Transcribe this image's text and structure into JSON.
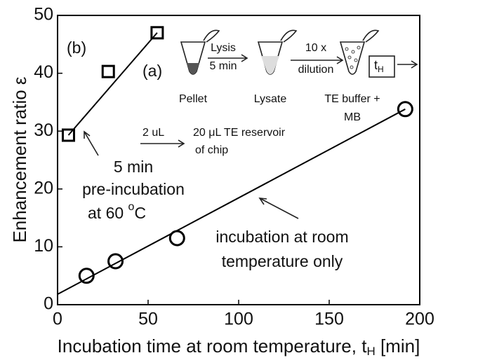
{
  "chart_data": {
    "type": "scatter",
    "x_label": [
      "Incubation time at room temperature, t",
      "H",
      " [min]"
    ],
    "y_label": "Enhancement ratio ε",
    "xlim": [
      0,
      200
    ],
    "ylim": [
      0,
      50
    ],
    "xticks": [
      0,
      50,
      100,
      150,
      200
    ],
    "yticks": [
      0,
      10,
      20,
      30,
      40,
      50
    ],
    "series": [
      {
        "marker": "circle",
        "color": "#000000",
        "x": [
          16,
          32,
          66,
          192
        ],
        "values": [
          5,
          7.5,
          11.5,
          33.8
        ]
      },
      {
        "marker": "square",
        "color": "#000000",
        "x": [
          6,
          28,
          55
        ],
        "values": [
          29.3,
          40.3,
          47
        ]
      },
      {
        "marker": "line",
        "color": "#000000",
        "x": [
          0,
          192
        ],
        "values": [
          1.8,
          33.8
        ]
      },
      {
        "marker": "line",
        "color": "#000000",
        "x": [
          6,
          55
        ],
        "values": [
          29.3,
          47
        ]
      }
    ],
    "annotations": [
      "(b)",
      "(a)",
      "Pellet",
      "Lysis",
      "5 min",
      "Lysate",
      "10 x",
      "dilution",
      "TE buffer +",
      "MB",
      "t",
      "H",
      "2 uL",
      "20 μL TE reservoir",
      "of chip",
      "5 min",
      "pre-incubation",
      "at 60 ",
      "o",
      "C",
      "incubation at room",
      "temperature only"
    ]
  }
}
